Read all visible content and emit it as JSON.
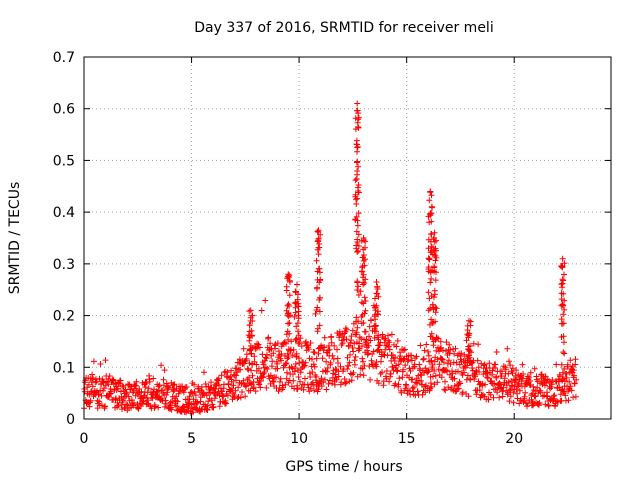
{
  "chart_data": {
    "type": "scatter",
    "title": "Day 337 of 2016, SRMTID for receiver meli",
    "xlabel": "GPS time / hours",
    "ylabel": "SRMTID / TECUs",
    "xlim": [
      0,
      24.5
    ],
    "ylim": [
      0,
      0.7
    ],
    "xticks": [
      0,
      5,
      10,
      15,
      20
    ],
    "xtick_labels": [
      "0",
      "5",
      "10",
      "15",
      "20"
    ],
    "yticks": [
      0,
      0.1,
      0.2,
      0.3,
      0.4,
      0.5,
      0.6,
      0.7
    ],
    "ytick_labels": [
      "0",
      "0.1",
      "0.2",
      "0.3",
      "0.4",
      "0.5",
      "0.6",
      "0.7"
    ],
    "grid": true,
    "marker": "+",
    "color": "#ff0000",
    "baseline": [
      [
        0.0,
        0.05
      ],
      [
        0.5,
        0.05
      ],
      [
        1.0,
        0.05
      ],
      [
        1.5,
        0.05
      ],
      [
        2.0,
        0.045
      ],
      [
        2.5,
        0.045
      ],
      [
        3.0,
        0.05
      ],
      [
        3.5,
        0.05
      ],
      [
        4.0,
        0.045
      ],
      [
        4.5,
        0.04
      ],
      [
        5.0,
        0.035
      ],
      [
        5.5,
        0.04
      ],
      [
        6.0,
        0.045
      ],
      [
        6.5,
        0.06
      ],
      [
        7.0,
        0.07
      ],
      [
        7.5,
        0.085
      ],
      [
        8.0,
        0.1
      ],
      [
        8.5,
        0.11
      ],
      [
        9.0,
        0.1
      ],
      [
        9.5,
        0.11
      ],
      [
        10.0,
        0.105
      ],
      [
        10.5,
        0.1
      ],
      [
        11.0,
        0.1
      ],
      [
        11.5,
        0.11
      ],
      [
        12.0,
        0.12
      ],
      [
        12.5,
        0.13
      ],
      [
        13.0,
        0.14
      ],
      [
        13.5,
        0.13
      ],
      [
        14.0,
        0.11
      ],
      [
        14.5,
        0.1
      ],
      [
        15.0,
        0.09
      ],
      [
        15.5,
        0.085
      ],
      [
        16.0,
        0.095
      ],
      [
        16.5,
        0.11
      ],
      [
        17.0,
        0.1
      ],
      [
        17.5,
        0.09
      ],
      [
        18.0,
        0.085
      ],
      [
        18.5,
        0.075
      ],
      [
        19.0,
        0.07
      ],
      [
        19.5,
        0.075
      ],
      [
        20.0,
        0.065
      ],
      [
        20.5,
        0.055
      ],
      [
        21.0,
        0.06
      ],
      [
        21.5,
        0.055
      ],
      [
        22.0,
        0.05
      ],
      [
        22.5,
        0.07
      ],
      [
        22.9,
        0.08
      ]
    ],
    "spikes": [
      {
        "x": 7.75,
        "ymax": 0.21
      },
      {
        "x": 9.5,
        "ymax": 0.28
      },
      {
        "x": 9.9,
        "ymax": 0.26
      },
      {
        "x": 10.9,
        "ymax": 0.365
      },
      {
        "x": 12.7,
        "ymax": 0.61
      },
      {
        "x": 13.0,
        "ymax": 0.35
      },
      {
        "x": 13.6,
        "ymax": 0.265
      },
      {
        "x": 16.1,
        "ymax": 0.44
      },
      {
        "x": 16.3,
        "ymax": 0.36
      },
      {
        "x": 17.9,
        "ymax": 0.19
      },
      {
        "x": 22.25,
        "ymax": 0.31
      }
    ],
    "x_end": 22.9
  }
}
